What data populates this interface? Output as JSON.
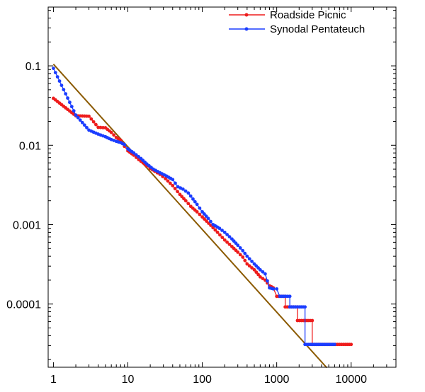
{
  "chart_data": {
    "type": "line",
    "title": "",
    "xlabel": "",
    "ylabel": "",
    "xscale": "log",
    "yscale": "log",
    "xlim": [
      0.85,
      40000
    ],
    "ylim": [
      1.6e-05,
      0.55
    ],
    "x_tick_labels": [
      "1",
      "10",
      "100",
      "1000",
      "10000"
    ],
    "x_tick_values": [
      1,
      10,
      100,
      1000,
      10000
    ],
    "y_tick_labels": [
      "0.1",
      "0.01",
      "0.001",
      "0.0001"
    ],
    "y_tick_values": [
      0.1,
      0.01,
      0.001,
      0.0001
    ],
    "grid": false,
    "legend_position": "top-right",
    "colors": {
      "roadside": "#ee1c1c",
      "synodal": "#1a3dff",
      "fit": "#8b5a00"
    },
    "series": [
      {
        "name": "Roadside Picnic",
        "color": "#ee1c1c",
        "points": [
          [
            1,
            0.039
          ],
          [
            2,
            0.0235
          ],
          [
            3,
            0.0232
          ],
          [
            4,
            0.0168
          ],
          [
            5,
            0.0166
          ],
          [
            6,
            0.0145
          ],
          [
            7,
            0.0125
          ],
          [
            8,
            0.0116
          ],
          [
            9,
            0.0097
          ],
          [
            10,
            0.0085
          ],
          [
            12,
            0.0075
          ],
          [
            14,
            0.0066
          ],
          [
            16,
            0.006
          ],
          [
            18,
            0.0055
          ],
          [
            20,
            0.0051
          ],
          [
            23,
            0.0047
          ],
          [
            27,
            0.0043
          ],
          [
            32,
            0.0038
          ],
          [
            40,
            0.0031
          ],
          [
            50,
            0.0024
          ],
          [
            60,
            0.002
          ],
          [
            70,
            0.0017
          ],
          [
            85,
            0.00145
          ],
          [
            100,
            0.00125
          ],
          [
            130,
            0.00098
          ],
          [
            160,
            0.0008
          ],
          [
            200,
            0.00064
          ],
          [
            250,
            0.00053
          ],
          [
            300,
            0.00045
          ],
          [
            350,
            0.00039
          ],
          [
            400,
            0.00032
          ],
          [
            500,
            0.00027
          ],
          [
            600,
            0.00022
          ],
          [
            700,
            0.0002
          ],
          [
            800,
            0.00017
          ],
          [
            900,
            0.00016
          ],
          [
            1000,
            0.000125
          ],
          [
            1300,
            0.000125
          ],
          [
            1300,
            9.2e-05
          ],
          [
            1900,
            9.2e-05
          ],
          [
            1900,
            6.2e-05
          ],
          [
            3000,
            6.2e-05
          ],
          [
            3000,
            3.1e-05
          ],
          [
            10000,
            3.1e-05
          ]
        ]
      },
      {
        "name": "Synodal Pentateuch",
        "color": "#1a3dff",
        "points": [
          [
            1,
            0.093
          ],
          [
            2,
            0.024
          ],
          [
            3,
            0.0155
          ],
          [
            4,
            0.0138
          ],
          [
            5,
            0.0128
          ],
          [
            6,
            0.0118
          ],
          [
            7,
            0.0112
          ],
          [
            8,
            0.0108
          ],
          [
            9,
            0.0102
          ],
          [
            10,
            0.009
          ],
          [
            12,
            0.008
          ],
          [
            15,
            0.0068
          ],
          [
            18,
            0.0058
          ],
          [
            22,
            0.005
          ],
          [
            27,
            0.0045
          ],
          [
            33,
            0.0041
          ],
          [
            40,
            0.0037
          ],
          [
            47,
            0.003
          ],
          [
            55,
            0.0028
          ],
          [
            65,
            0.0025
          ],
          [
            75,
            0.0021
          ],
          [
            85,
            0.0018
          ],
          [
            100,
            0.00145
          ],
          [
            120,
            0.0012
          ],
          [
            140,
            0.001
          ],
          [
            170,
            0.0009
          ],
          [
            200,
            0.0008
          ],
          [
            250,
            0.00066
          ],
          [
            300,
            0.00055
          ],
          [
            350,
            0.00047
          ],
          [
            400,
            0.0004
          ],
          [
            500,
            0.00032
          ],
          [
            600,
            0.00027
          ],
          [
            700,
            0.00024
          ],
          [
            800,
            0.00016
          ],
          [
            900,
            0.000155
          ],
          [
            1000,
            0.000155
          ],
          [
            1100,
            0.000125
          ],
          [
            1500,
            0.000125
          ],
          [
            1500,
            9.2e-05
          ],
          [
            2400,
            9.2e-05
          ],
          [
            2400,
            3.1e-05
          ],
          [
            6000,
            3.1e-05
          ]
        ]
      }
    ],
    "fit_line": {
      "color": "#8b5a00",
      "from": [
        1,
        0.105
      ],
      "to": [
        4700,
        1.58e-05
      ]
    }
  }
}
